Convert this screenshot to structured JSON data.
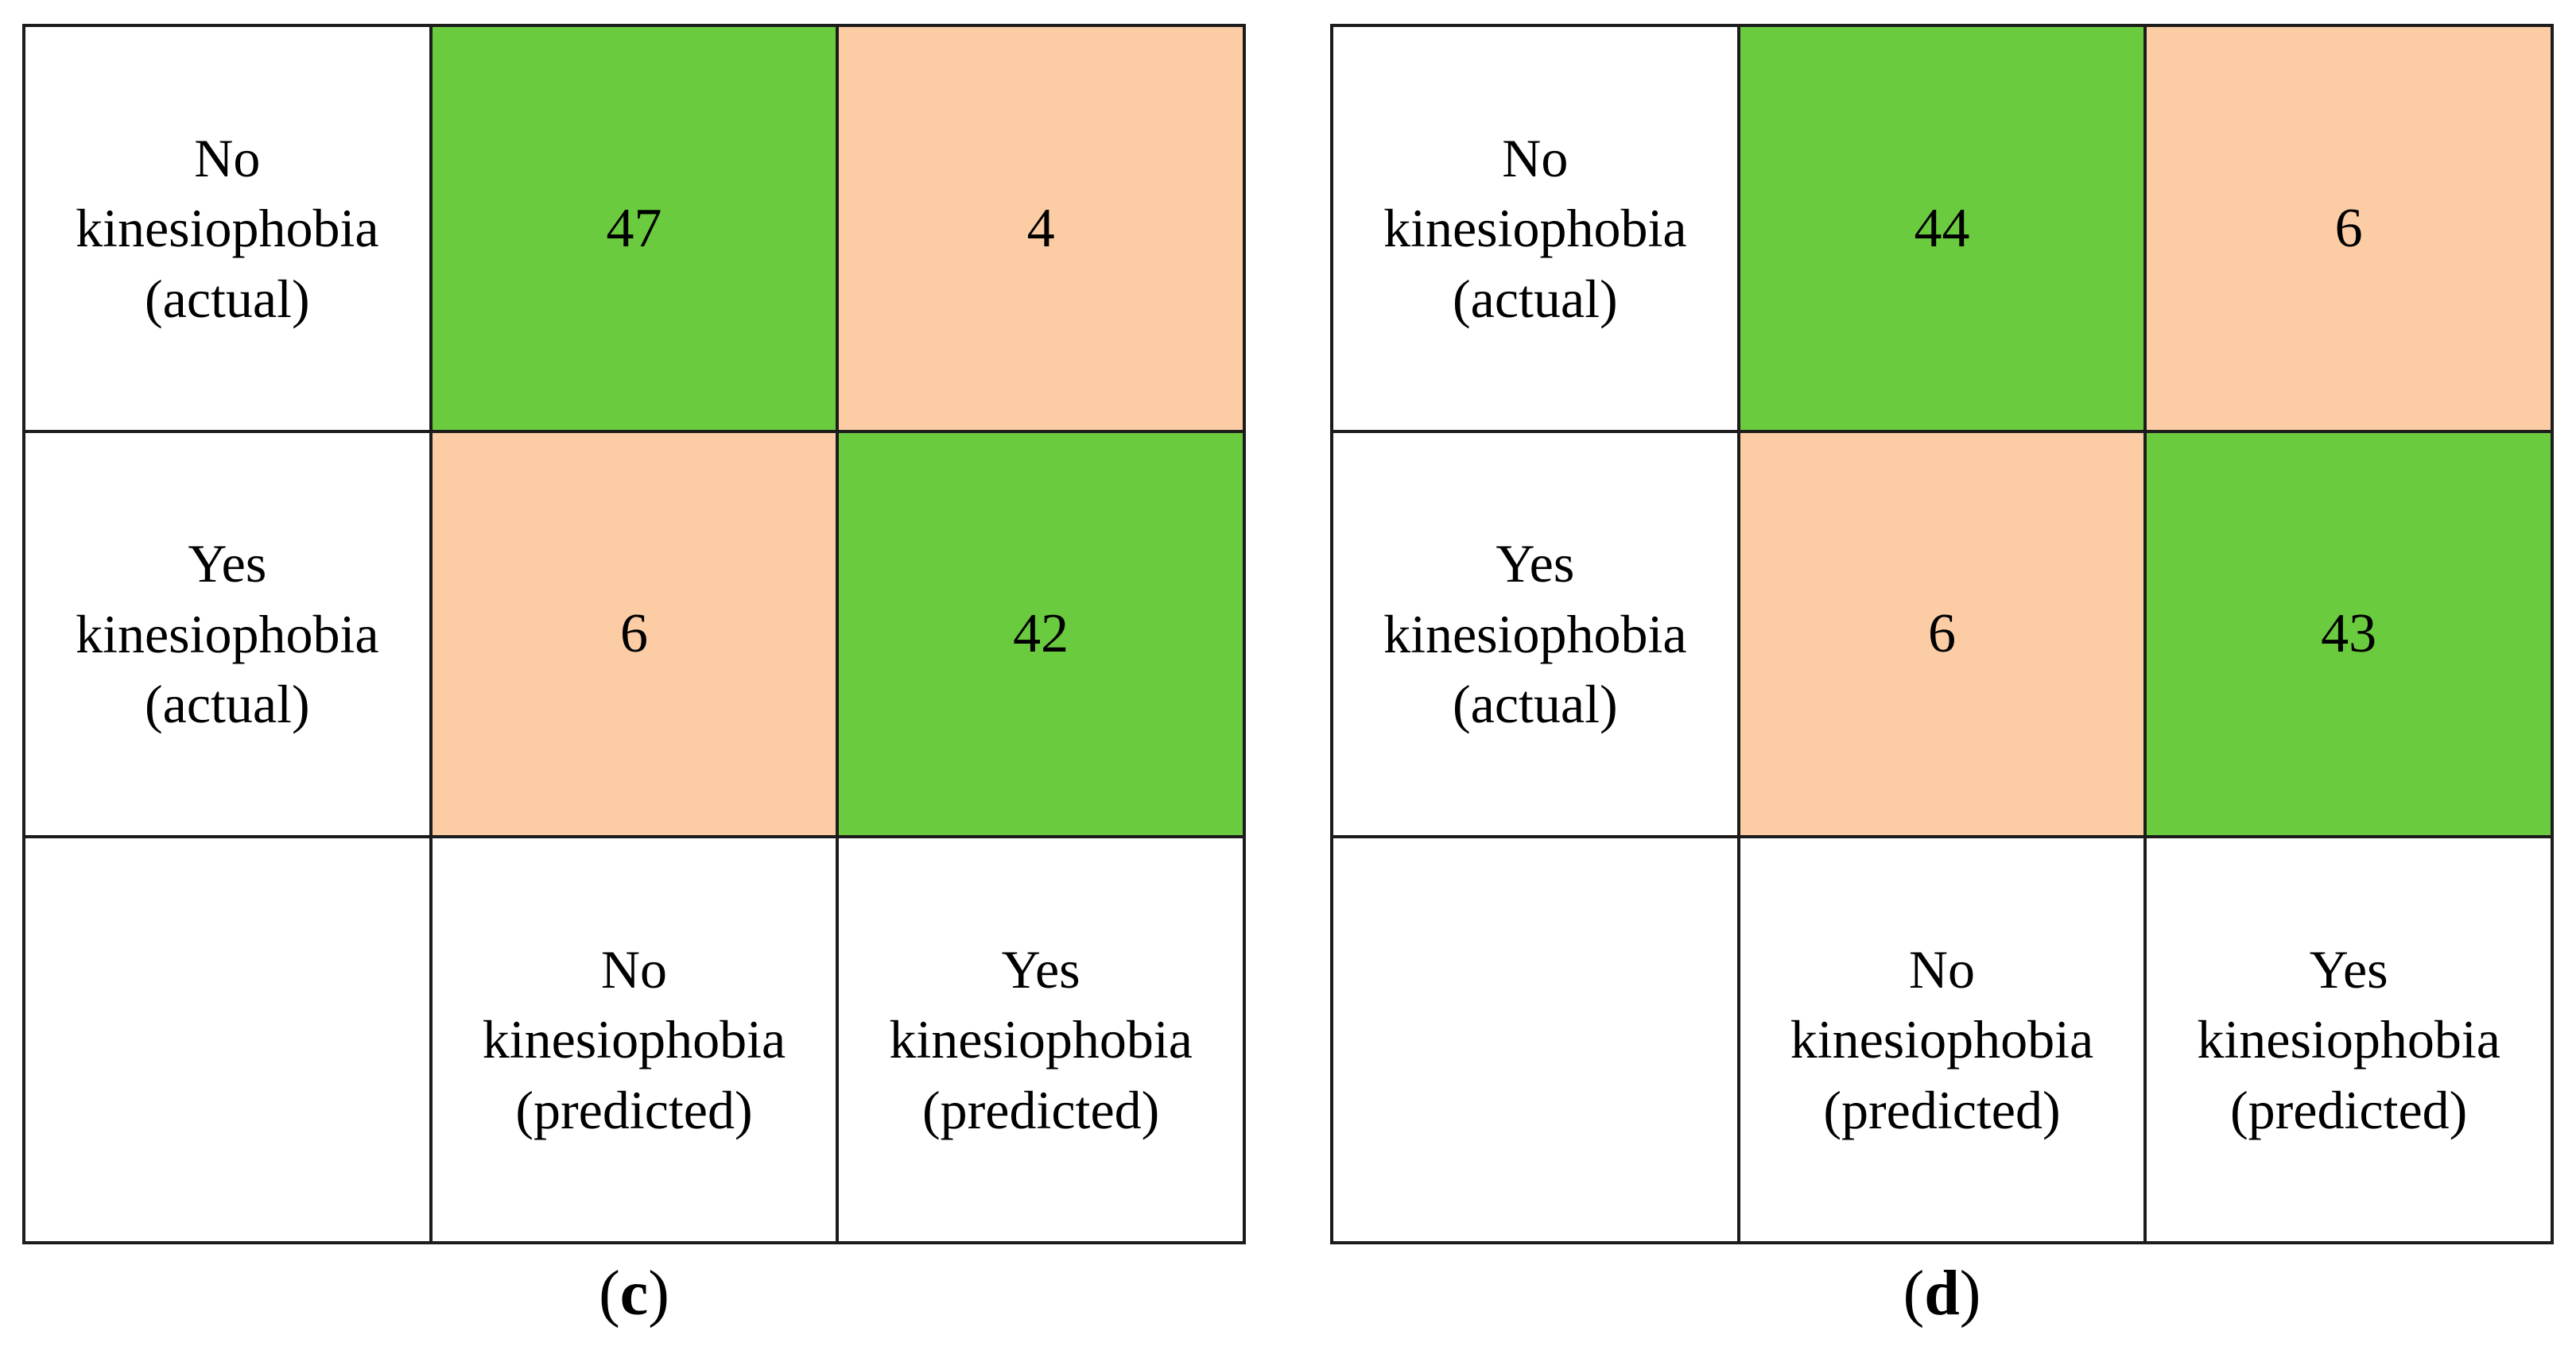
{
  "colors": {
    "correct_cell": "#6bcb3f",
    "incorrect_cell": "#fccda5",
    "grid_border": "#1c1c1c",
    "text": "#000000",
    "background": "#ffffff"
  },
  "matrices": [
    {
      "caption_open": "(",
      "caption_letter": "c",
      "caption_close": ")",
      "row_labels": [
        "No\nkinesiophobia\n(actual)",
        "Yes\nkinesiophobia\n(actual)"
      ],
      "col_labels": [
        "No\nkinesiophobia\n(predicted)",
        "Yes\nkinesiophobia\n(predicted)"
      ]
    },
    {
      "caption_open": "(",
      "caption_letter": "d",
      "caption_close": ")",
      "row_labels": [
        "No\nkinesiophobia\n(actual)",
        "Yes\nkinesiophobia\n(actual)"
      ],
      "col_labels": [
        "No\nkinesiophobia\n(predicted)",
        "Yes\nkinesiophobia\n(predicted)"
      ]
    }
  ],
  "chart_data": [
    {
      "type": "heatmap",
      "title": "(c)",
      "rows": [
        "No kinesiophobia (actual)",
        "Yes kinesiophobia (actual)"
      ],
      "columns": [
        "No kinesiophobia (predicted)",
        "Yes kinesiophobia (predicted)"
      ],
      "values": [
        [
          47,
          4
        ],
        [
          6,
          42
        ]
      ],
      "cell_color_semantics": [
        [
          "correct",
          "incorrect"
        ],
        [
          "incorrect",
          "correct"
        ]
      ],
      "legend_position": "none",
      "grid": true
    },
    {
      "type": "heatmap",
      "title": "(d)",
      "rows": [
        "No kinesiophobia (actual)",
        "Yes kinesiophobia (actual)"
      ],
      "columns": [
        "No kinesiophobia (predicted)",
        "Yes kinesiophobia (predicted)"
      ],
      "values": [
        [
          44,
          6
        ],
        [
          6,
          43
        ]
      ],
      "cell_color_semantics": [
        [
          "correct",
          "incorrect"
        ],
        [
          "incorrect",
          "correct"
        ]
      ],
      "legend_position": "none",
      "grid": true
    }
  ]
}
